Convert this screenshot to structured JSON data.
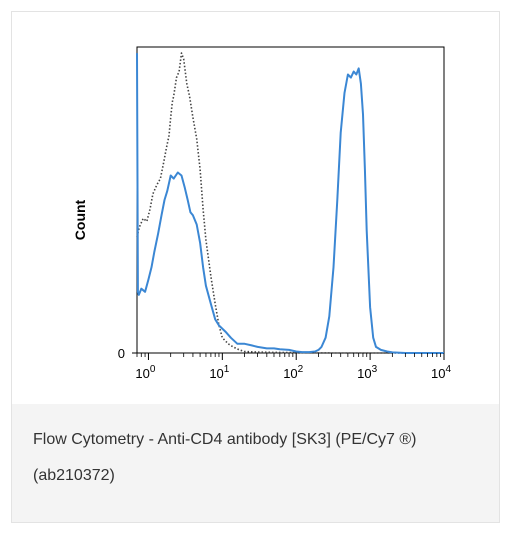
{
  "caption": "Flow Cytometry - Anti-CD4 antibody [SK3] (PE/Cy7 ®) (ab210372)",
  "chart_data": {
    "type": "line",
    "title": "",
    "xlabel": "",
    "ylabel": "Count",
    "xscale": "log",
    "xlim": [
      0.7,
      10000
    ],
    "ylim": [
      0,
      100
    ],
    "x_ticks": [
      {
        "value": 1,
        "base": "10",
        "exp": "0"
      },
      {
        "value": 10,
        "base": "10",
        "exp": "1"
      },
      {
        "value": 100,
        "base": "10",
        "exp": "2"
      },
      {
        "value": 1000,
        "base": "10",
        "exp": "3"
      },
      {
        "value": 10000,
        "base": "10",
        "exp": "4"
      }
    ],
    "y_tick_label": "0",
    "series": [
      {
        "style": "dotted",
        "color": "#444444",
        "x": [
          0.7,
          0.75,
          0.85,
          0.95,
          1.05,
          1.15,
          1.3,
          1.45,
          1.6,
          1.75,
          1.9,
          2.0,
          2.1,
          2.2,
          2.4,
          2.6,
          2.8,
          3.0,
          3.3,
          3.6,
          4.0,
          4.5,
          5.0,
          5.5,
          6.0,
          7.0,
          8.0,
          9.0,
          10.0,
          12,
          14,
          17,
          20,
          30,
          50,
          100,
          300,
          1000,
          10000
        ],
        "y": [
          38,
          41,
          44,
          43,
          47,
          52,
          55,
          57,
          62,
          67,
          71,
          77,
          82,
          84,
          90,
          92,
          98,
          96,
          88,
          84,
          77,
          70,
          60,
          47,
          37,
          25,
          16,
          9,
          5,
          3,
          2,
          1,
          0.5,
          0.3,
          0.2,
          0.1,
          0,
          0,
          0
        ]
      },
      {
        "style": "solid",
        "color": "#3b87d4",
        "x": [
          0.7,
          0.72,
          0.74,
          0.8,
          0.9,
          1.0,
          1.1,
          1.2,
          1.35,
          1.5,
          1.65,
          1.8,
          2.0,
          2.2,
          2.5,
          2.8,
          3.1,
          3.4,
          3.7,
          4.0,
          4.5,
          5.0,
          5.5,
          6.0,
          7.0,
          8.0,
          9.0,
          11,
          13,
          16,
          20,
          25,
          30,
          40,
          50,
          60,
          80,
          100,
          120,
          150,
          180,
          200,
          220,
          250,
          280,
          320,
          360,
          400,
          450,
          500,
          550,
          600,
          650,
          700,
          750,
          800,
          850,
          900,
          1000,
          1100,
          1200,
          1400,
          1700,
          2000,
          3000,
          5000,
          10000
        ],
        "y": [
          98,
          20,
          19,
          21,
          20,
          24,
          28,
          33,
          39,
          45,
          50,
          53,
          58,
          57,
          59,
          58,
          54,
          50,
          46,
          45,
          42,
          36,
          28,
          22,
          16,
          11,
          9,
          7,
          5,
          3,
          3,
          2.5,
          2,
          1.5,
          1.5,
          1.2,
          1,
          0.5,
          0.3,
          0.3,
          0.5,
          1,
          2,
          5,
          12,
          28,
          50,
          72,
          85,
          91,
          90,
          92,
          91,
          93,
          88,
          78,
          60,
          40,
          15,
          5,
          2,
          1,
          0.5,
          0.2,
          0,
          0,
          0
        ]
      }
    ]
  }
}
